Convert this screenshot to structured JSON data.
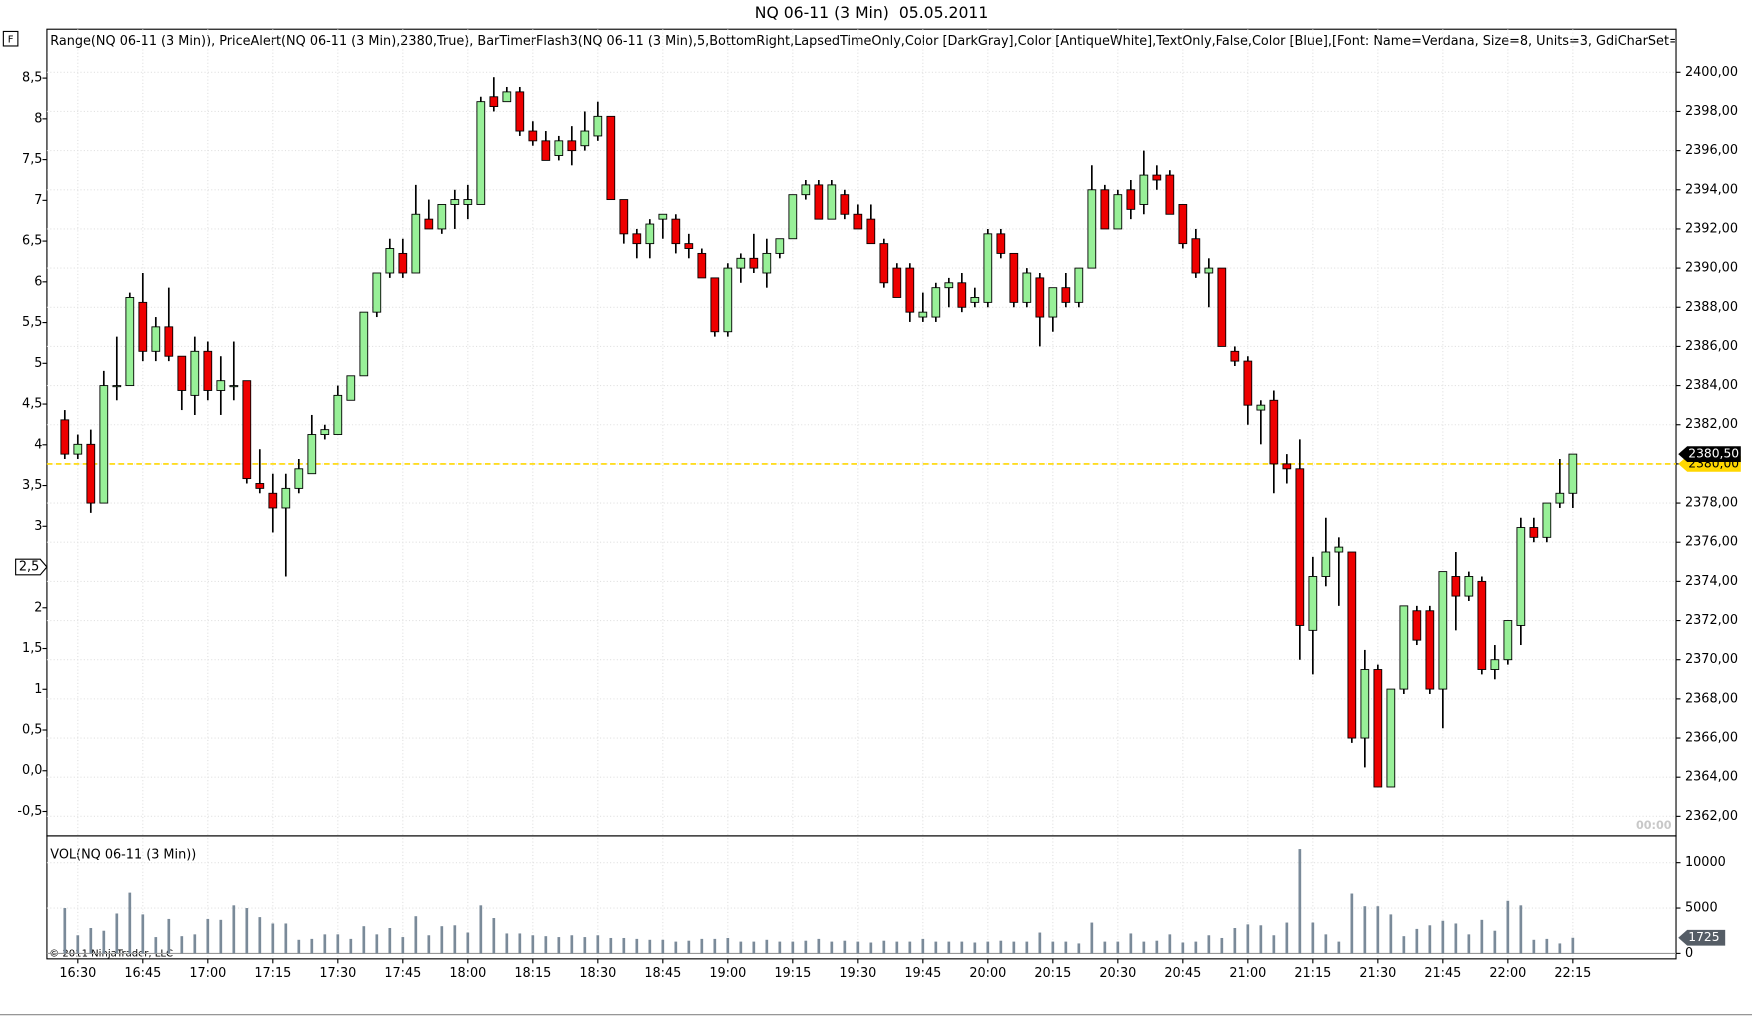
{
  "button": "F",
  "title": "NQ 06-11 (3 Min)  05.05.2011",
  "indicators": "Range(NQ 06-11 (3 Min)), PriceAlert(NQ 06-11 (3 Min),2380,True), BarTimerFlash3(NQ 06-11 (3 Min),5,BottomRight,LapsedTimeOnly,Color [DarkGray],Color [AntiqueWhite],TextOnly,False,Color [Blue],[Font: Name=Verdana, Size=8, Units=3, GdiCharSet=1, Gd",
  "timer": "00:00",
  "copyright": "© 2011 NinjaTrader, LLC",
  "chart_data": [
    {
      "type": "candlestick",
      "categories": [
        null,
        "16:30",
        null,
        null,
        null,
        null,
        "16:45",
        null,
        null,
        null,
        null,
        "17:00",
        null,
        null,
        null,
        null,
        "17:15",
        null,
        null,
        null,
        null,
        "17:30",
        null,
        null,
        null,
        null,
        "17:45",
        null,
        null,
        null,
        null,
        "18:00",
        null,
        null,
        null,
        null,
        "18:15",
        null,
        null,
        null,
        null,
        "18:30",
        null,
        null,
        null,
        null,
        "18:45",
        null,
        null,
        null,
        null,
        "19:00",
        null,
        null,
        null,
        null,
        "19:15",
        null,
        null,
        null,
        null,
        "19:30",
        null,
        null,
        null,
        null,
        "19:45",
        null,
        null,
        null,
        null,
        "20:00",
        null,
        null,
        null,
        null,
        "20:15",
        null,
        null,
        null,
        null,
        "20:30",
        null,
        null,
        null,
        null,
        "20:45",
        null,
        null,
        null,
        null,
        "21:00",
        null,
        null,
        null,
        null,
        "21:15",
        null,
        null,
        null,
        null,
        "21:30",
        null,
        null,
        null,
        null,
        "21:45",
        null,
        null,
        null,
        null,
        "22:00",
        null,
        null,
        null,
        null,
        "22:15"
      ],
      "open": [
        2382.25,
        2380.5,
        2381,
        2378,
        2384,
        2384,
        2388.25,
        2385.75,
        2387,
        2385.5,
        2383.5,
        2385.75,
        2383.75,
        2384,
        2384.25,
        2379,
        2378.5,
        2377.75,
        2378.75,
        2379.5,
        2381.5,
        2381.5,
        2383.25,
        2384.5,
        2387.75,
        2389.75,
        2390.75,
        2389.75,
        2392.5,
        2392,
        2393.25,
        2393.25,
        2393.25,
        2398.75,
        2398.5,
        2399,
        2397,
        2396.5,
        2395.75,
        2396.5,
        2396.25,
        2396.75,
        2397.75,
        2393.5,
        2391.75,
        2391.25,
        2392.5,
        2392.5,
        2391.25,
        2390.75,
        2389.5,
        2386.75,
        2390,
        2390.5,
        2389.75,
        2390.75,
        2391.5,
        2393.75,
        2394.25,
        2392.5,
        2393.75,
        2392.75,
        2392.5,
        2391.25,
        2390,
        2390,
        2387.5,
        2387.5,
        2389,
        2389.25,
        2388.25,
        2388.25,
        2391.75,
        2390.75,
        2388.25,
        2389.5,
        2387.5,
        2389,
        2388.25,
        2390,
        2394,
        2392,
        2394,
        2393.25,
        2394.75,
        2394.75,
        2393.25,
        2391.5,
        2389.75,
        2390,
        2385.75,
        2385.25,
        2382.75,
        2383.25,
        2380,
        2379.75,
        2371.5,
        2374.25,
        2375.5,
        2375.5,
        2366,
        2369.5,
        2363.5,
        2368.5,
        2372.5,
        2372.5,
        2368.5,
        2374.25,
        2373.25,
        2374,
        2369.5,
        2370,
        2371.75,
        2376.75,
        2376.25,
        2378,
        2378.5
      ],
      "high": [
        2382.75,
        2381.5,
        2381.75,
        2384.75,
        2386.5,
        2388.75,
        2389.75,
        2387.5,
        2389,
        2385.5,
        2386.5,
        2386.25,
        2385.5,
        2386.25,
        2384.25,
        2380.75,
        2379.5,
        2379.5,
        2380.25,
        2382.5,
        2382,
        2384,
        2384.5,
        2387.75,
        2389.75,
        2391.5,
        2391.5,
        2394.25,
        2393.5,
        2393.25,
        2394,
        2394.25,
        2398.75,
        2399.75,
        2399.25,
        2399.25,
        2397.5,
        2397,
        2396.75,
        2397.25,
        2398,
        2398.5,
        2397.75,
        2393.5,
        2392,
        2392.5,
        2392.75,
        2392.75,
        2391.75,
        2391,
        2389.5,
        2390.25,
        2390.75,
        2391.75,
        2391.5,
        2391.5,
        2393.75,
        2394.5,
        2394.5,
        2394.5,
        2394,
        2393.25,
        2393.25,
        2391.5,
        2390.25,
        2390.25,
        2388.75,
        2389.25,
        2389.5,
        2389.75,
        2389,
        2392,
        2392,
        2390.75,
        2390,
        2389.75,
        2389,
        2389.75,
        2390,
        2395.25,
        2394.25,
        2394,
        2394.5,
        2396,
        2395.25,
        2395,
        2393.25,
        2392,
        2390.5,
        2390,
        2386,
        2385.5,
        2383.25,
        2383.75,
        2380.5,
        2381.25,
        2375.25,
        2377.25,
        2376.25,
        2375.5,
        2370.5,
        2369.75,
        2368.5,
        2372.75,
        2372.75,
        2372.75,
        2374.5,
        2375.5,
        2374.5,
        2374.25,
        2370.75,
        2372,
        2377.25,
        2377.25,
        2378,
        2380.25,
        2380.5
      ],
      "low": [
        2380.25,
        2380.25,
        2377.5,
        2378,
        2383.25,
        2384,
        2385.25,
        2385.25,
        2385.25,
        2382.75,
        2382.5,
        2383.25,
        2382.5,
        2383.25,
        2379,
        2378.5,
        2376.5,
        2374.25,
        2378.5,
        2379.5,
        2381.25,
        2381.5,
        2383.25,
        2384.5,
        2387.5,
        2389.5,
        2389.5,
        2389.75,
        2392,
        2391.75,
        2392,
        2392.5,
        2393.25,
        2398,
        2398.5,
        2396.75,
        2396.25,
        2395.5,
        2395.5,
        2395.25,
        2396,
        2396.5,
        2393.5,
        2391.25,
        2390.5,
        2390.5,
        2391.5,
        2390.75,
        2390.5,
        2389.5,
        2386.5,
        2386.5,
        2389.25,
        2389.75,
        2389,
        2390.5,
        2391.5,
        2393.5,
        2392.5,
        2392.5,
        2392.5,
        2392,
        2391.25,
        2389,
        2388.5,
        2387.25,
        2387.25,
        2387.25,
        2388,
        2387.75,
        2388,
        2388,
        2390.5,
        2388,
        2388,
        2386,
        2386.75,
        2388,
        2388,
        2390,
        2392,
        2392,
        2392.5,
        2392.75,
        2394,
        2392.75,
        2391,
        2389.5,
        2388,
        2386,
        2385,
        2382,
        2381,
        2378.5,
        2379,
        2370,
        2369.25,
        2373.75,
        2372.75,
        2365.75,
        2364.5,
        2363.5,
        2363.5,
        2368.25,
        2370.75,
        2368.25,
        2366.5,
        2371.5,
        2373,
        2369.25,
        2369,
        2369.75,
        2370.75,
        2376,
        2376,
        2377.75,
        2377.75
      ],
      "close": [
        2380.5,
        2381,
        2378,
        2384,
        2384,
        2388.5,
        2385.75,
        2387,
        2385.5,
        2383.75,
        2385.75,
        2383.75,
        2384.25,
        2384,
        2379.25,
        2378.75,
        2377.75,
        2378.75,
        2379.75,
        2381.5,
        2381.75,
        2383.5,
        2384.5,
        2387.75,
        2389.75,
        2391,
        2389.75,
        2392.75,
        2392,
        2393.25,
        2393.5,
        2393.5,
        2398.5,
        2398.25,
        2399,
        2397,
        2396.5,
        2395.5,
        2396.5,
        2396,
        2397,
        2397.75,
        2393.5,
        2391.75,
        2391.25,
        2392.25,
        2392.75,
        2391.25,
        2391,
        2389.5,
        2386.75,
        2390,
        2390.5,
        2390,
        2390.75,
        2391.5,
        2393.75,
        2394.25,
        2392.5,
        2394.25,
        2392.75,
        2392,
        2391.25,
        2389.25,
        2388.5,
        2387.75,
        2387.75,
        2389,
        2389.25,
        2388,
        2388.5,
        2391.75,
        2390.75,
        2388.25,
        2389.75,
        2387.5,
        2389,
        2388.25,
        2390,
        2394,
        2392,
        2393.75,
        2393,
        2394.75,
        2394.5,
        2392.75,
        2391.25,
        2389.75,
        2390,
        2386,
        2385.25,
        2383,
        2383,
        2380,
        2379.75,
        2371.75,
        2374.25,
        2375.5,
        2375.75,
        2366,
        2369.5,
        2363.5,
        2368.5,
        2372.75,
        2371,
        2368.5,
        2374.5,
        2373.25,
        2374.25,
        2369.5,
        2370,
        2372,
        2376.75,
        2376.25,
        2378,
        2378.5,
        2380.5
      ],
      "last_label": "2380,50",
      "up_color": "#98f098",
      "down_color": "#ee0000",
      "wick_color": "#000000",
      "alert": {
        "value": 2380,
        "label": "2380,00",
        "color": "#ffd700"
      },
      "ylim": [
        2361,
        2402.2
      ],
      "yticks": [
        {
          "value": 2362,
          "label": "2362,00"
        },
        {
          "value": 2364,
          "label": "2364,00"
        },
        {
          "value": 2366,
          "label": "2366,00"
        },
        {
          "value": 2368,
          "label": "2368,00"
        },
        {
          "value": 2370,
          "label": "2370,00"
        },
        {
          "value": 2372,
          "label": "2372,00"
        },
        {
          "value": 2374,
          "label": "2374,00"
        },
        {
          "value": 2376,
          "label": "2376,00"
        },
        {
          "value": 2378,
          "label": "2378,00"
        },
        {
          "value": 2380,
          "label": "2380,00"
        },
        {
          "value": 2382,
          "label": "2382,00"
        },
        {
          "value": 2384,
          "label": "2384,00"
        },
        {
          "value": 2386,
          "label": "2386,00"
        },
        {
          "value": 2388,
          "label": "2388,00"
        },
        {
          "value": 2390,
          "label": "2390,00"
        },
        {
          "value": 2392,
          "label": "2392,00"
        },
        {
          "value": 2394,
          "label": "2394,00"
        },
        {
          "value": 2396,
          "label": "2396,00"
        },
        {
          "value": 2398,
          "label": "2398,00"
        },
        {
          "value": 2400,
          "label": "2400,00"
        }
      ],
      "y2lim": [
        -0.8,
        9.1
      ],
      "y2ticks": [
        {
          "value": -0.5,
          "label": "-0,5"
        },
        {
          "value": 0,
          "label": "0,0"
        },
        {
          "value": 0.5,
          "label": "0,5"
        },
        1,
        {
          "value": 1.5,
          "label": "1,5"
        },
        2,
        {
          "value": 2.5,
          "label": "2,5"
        },
        3,
        {
          "value": 3.5,
          "label": "3,5"
        },
        4,
        {
          "value": 4.5,
          "label": "4,5"
        },
        5,
        {
          "value": 5.5,
          "label": "5,5"
        },
        6,
        {
          "value": 6.5,
          "label": "6,5"
        },
        7,
        {
          "value": 7.5,
          "label": "7,5"
        },
        8,
        {
          "value": 8.5,
          "label": "8,5"
        }
      ],
      "range_last": {
        "value": 2.5,
        "label": "2,5"
      },
      "grid": true
    },
    {
      "type": "bar",
      "title": "VOL(NQ 06-11 (3 Min))",
      "color": "#7a8a99",
      "values": [
        5000,
        2000,
        2800,
        2500,
        4400,
        6700,
        4300,
        1800,
        3800,
        1900,
        2100,
        3800,
        3700,
        5300,
        5000,
        4000,
        3300,
        3300,
        1500,
        1600,
        2100,
        2100,
        1600,
        3000,
        2100,
        2800,
        1800,
        4100,
        2000,
        3000,
        3100,
        2300,
        5300,
        3900,
        2200,
        2200,
        2000,
        1900,
        1800,
        2000,
        1800,
        2000,
        1700,
        1700,
        1600,
        1500,
        1500,
        1300,
        1400,
        1600,
        1600,
        1700,
        1300,
        1300,
        1500,
        1300,
        1300,
        1400,
        1600,
        1300,
        1400,
        1300,
        1200,
        1400,
        1300,
        1300,
        1600,
        1300,
        1300,
        1300,
        1200,
        1300,
        1400,
        1300,
        1300,
        2300,
        1300,
        1300,
        1100,
        3400,
        1300,
        1300,
        2200,
        1300,
        1400,
        2100,
        1200,
        1300,
        2000,
        1700,
        2800,
        3200,
        3100,
        2000,
        3400,
        11500,
        3400,
        2100,
        1300,
        6600,
        5200,
        5200,
        4300,
        1900,
        2700,
        3100,
        3600,
        3300,
        2100,
        3700,
        2500,
        5800,
        5300,
        1500,
        1600,
        1100,
        1725
      ],
      "marker_color": "#555d66",
      "ylim": [
        -600,
        12700
      ],
      "yticks": [
        0,
        5000,
        10000
      ],
      "grid": true
    }
  ]
}
